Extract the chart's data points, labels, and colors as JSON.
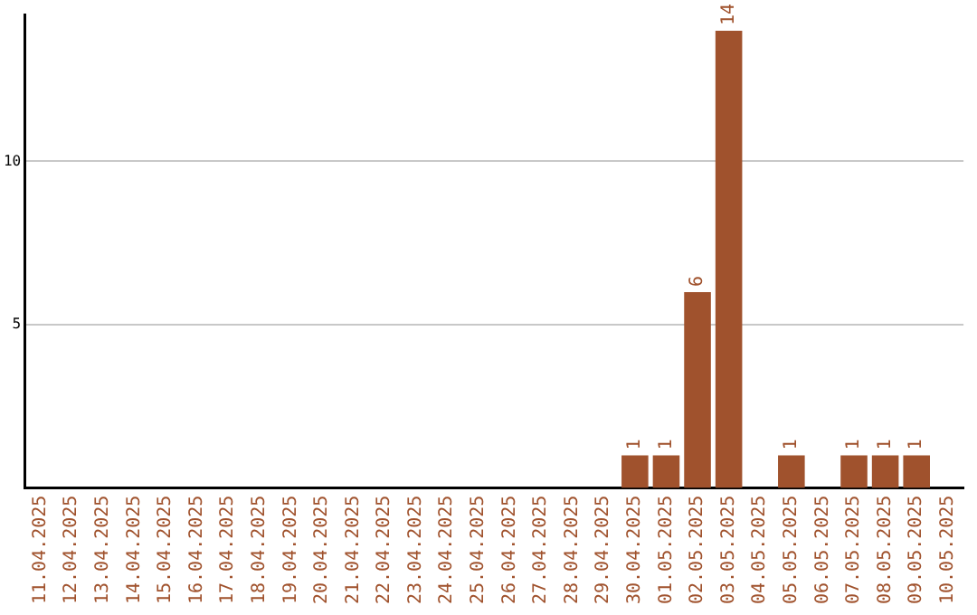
{
  "chart_data": {
    "type": "bar",
    "categories": [
      "11.04.2025",
      "12.04.2025",
      "13.04.2025",
      "14.04.2025",
      "15.04.2025",
      "16.04.2025",
      "17.04.2025",
      "18.04.2025",
      "19.04.2025",
      "20.04.2025",
      "21.04.2025",
      "22.04.2025",
      "23.04.2025",
      "24.04.2025",
      "25.04.2025",
      "26.04.2025",
      "27.04.2025",
      "28.04.2025",
      "29.04.2025",
      "30.04.2025",
      "01.05.2025",
      "02.05.2025",
      "03.05.2025",
      "04.05.2025",
      "05.05.2025",
      "06.05.2025",
      "07.05.2025",
      "08.05.2025",
      "09.05.2025",
      "10.05.2025"
    ],
    "values": [
      0,
      0,
      0,
      0,
      0,
      0,
      0,
      0,
      0,
      0,
      0,
      0,
      0,
      0,
      0,
      0,
      0,
      0,
      0,
      1,
      1,
      6,
      14,
      0,
      1,
      0,
      1,
      1,
      1,
      0
    ],
    "value_labels": [
      null,
      null,
      null,
      null,
      null,
      null,
      null,
      null,
      null,
      null,
      null,
      null,
      null,
      null,
      null,
      null,
      null,
      null,
      null,
      "1",
      "1",
      "6",
      "14",
      null,
      "1",
      null,
      "1",
      "1",
      "1",
      null
    ],
    "color": "#a0522d",
    "ylim": [
      0,
      14.5
    ],
    "yticks": [
      5,
      10
    ],
    "grid": "y",
    "legend": false
  }
}
